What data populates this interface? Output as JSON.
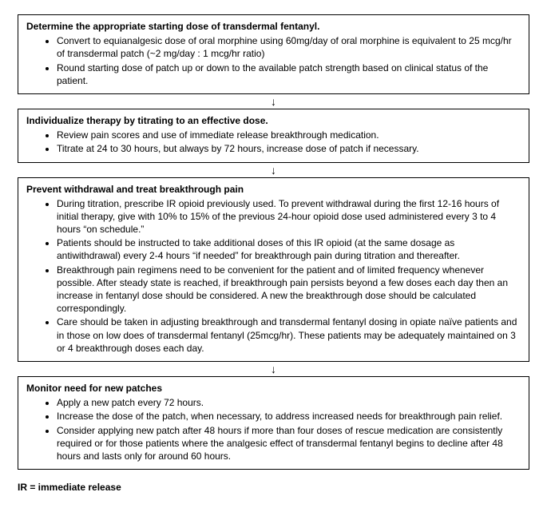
{
  "boxes": [
    {
      "title": "Determine the appropriate starting dose of transdermal fentanyl.",
      "bullets": [
        "Convert to equianalgesic dose of oral morphine using 60mg/day of oral morphine is equivalent to 25 mcg/hr of transdermal patch (~2 mg/day : 1 mcg/hr ratio)",
        "Round starting dose of patch up or down to the available patch strength based on clinical status of the patient."
      ]
    },
    {
      "title": "Individualize therapy by titrating to an effective dose.",
      "bullets": [
        "Review pain scores and use of immediate release breakthrough medication.",
        "Titrate at 24 to 30 hours, but always by 72 hours, increase dose of patch if necessary."
      ]
    },
    {
      "title": "Prevent withdrawal and treat breakthrough pain",
      "bullets": [
        "During titration, prescribe IR opioid previously used. To prevent withdrawal during the first 12-16 hours of initial therapy, give with 10% to 15% of the previous 24-hour opioid dose used administered every 3 to 4 hours “on schedule.”",
        "Patients should be instructed to take additional doses of this IR opioid (at the same dosage as antiwithdrawal) every 2-4 hours “if needed” for breakthrough pain during titration and thereafter.",
        "Breakthrough pain regimens need to be convenient for the patient and of limited frequency whenever possible. After steady state is reached, if breakthrough pain persists beyond a few doses each day then an increase in fentanyl dose should be considered. A new the breakthrough dose should be calculated correspondingly.",
        "Care should be taken in adjusting breakthrough and transdermal fentanyl dosing in opiate naïve patients and in those on low does of transdermal fentanyl (25mcg/hr). These patients may be adequately maintained on 3 or 4 breakthrough doses each day."
      ]
    },
    {
      "title": "Monitor need for new patches",
      "bullets": [
        "Apply a new patch every 72 hours.",
        "Increase the dose of the patch, when necessary, to address increased needs for breakthrough pain relief.",
        "Consider applying new patch after 48 hours if more than four doses of rescue medication are consistently required or for those patients where the analgesic effect of transdermal fentanyl begins to decline after 48 hours and lasts only for around 60 hours."
      ]
    }
  ],
  "arrow": "↓",
  "footnote": "IR = immediate release"
}
